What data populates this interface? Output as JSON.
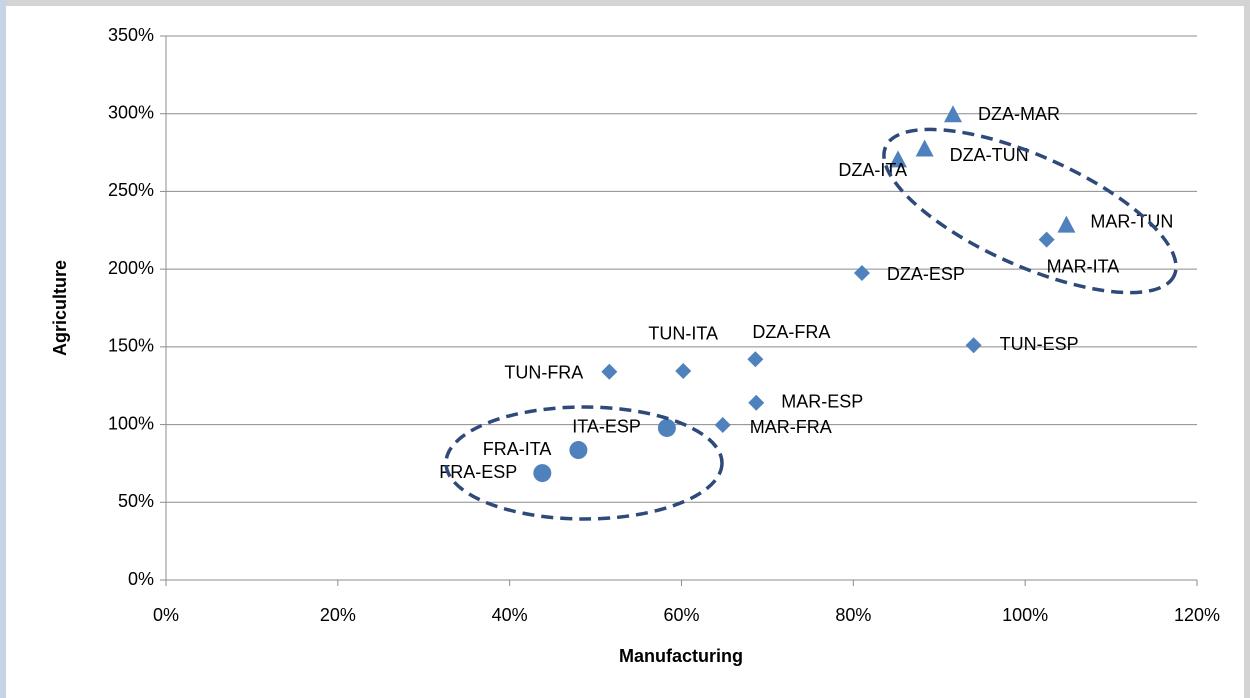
{
  "chart_data": {
    "type": "scatter",
    "x_label": "Manufacturing",
    "y_label": "Agriculture",
    "xlim": [
      0,
      120
    ],
    "ylim": [
      0,
      350
    ],
    "xticks": [
      {
        "value": 0,
        "label": "0%"
      },
      {
        "value": 20,
        "label": "20%"
      },
      {
        "value": 40,
        "label": "40%"
      },
      {
        "value": 60,
        "label": "60%"
      },
      {
        "value": 80,
        "label": "80%"
      },
      {
        "value": 100,
        "label": "100%"
      },
      {
        "value": 120,
        "label": "120%"
      }
    ],
    "yticks": [
      {
        "value": 0,
        "label": "0%"
      },
      {
        "value": 50,
        "label": "50%"
      },
      {
        "value": 100,
        "label": "100%"
      },
      {
        "value": 150,
        "label": "150%"
      },
      {
        "value": 200,
        "label": "200%"
      },
      {
        "value": 250,
        "label": "250%"
      },
      {
        "value": 300,
        "label": "300%"
      },
      {
        "value": 350,
        "label": "350%"
      }
    ],
    "grid": true,
    "series": [
      {
        "marker": "triangle",
        "color": "#4f81bd",
        "x": [
          91.6,
          88.3,
          85.2,
          104.8
        ],
        "values": [
          299,
          277,
          270,
          228
        ],
        "labels": [
          "DZA-MAR",
          "DZA-TUN",
          "DZA-ITA",
          "MAR-TUN"
        ]
      },
      {
        "marker": "diamond",
        "color": "#4f81bd",
        "x": [
          102.5,
          81,
          94,
          68.6,
          60.2,
          51.6,
          68.7,
          64.8
        ],
        "values": [
          219,
          197.5,
          151,
          142,
          134.5,
          134,
          114,
          99.7
        ],
        "labels": [
          "MAR-ITA",
          "DZA-ESP",
          "TUN-ESP",
          "DZA-FRA",
          "TUN-ITA",
          "TUN-FRA",
          "MAR-ESP",
          "MAR-FRA"
        ]
      },
      {
        "marker": "circle",
        "color": "#4f81bd",
        "x": [
          58.3,
          48,
          43.8
        ],
        "values": [
          97.8,
          83.6,
          68.8
        ],
        "labels": [
          "ITA-ESP",
          "FRA-ITA",
          "FRA-ESP"
        ]
      }
    ]
  }
}
